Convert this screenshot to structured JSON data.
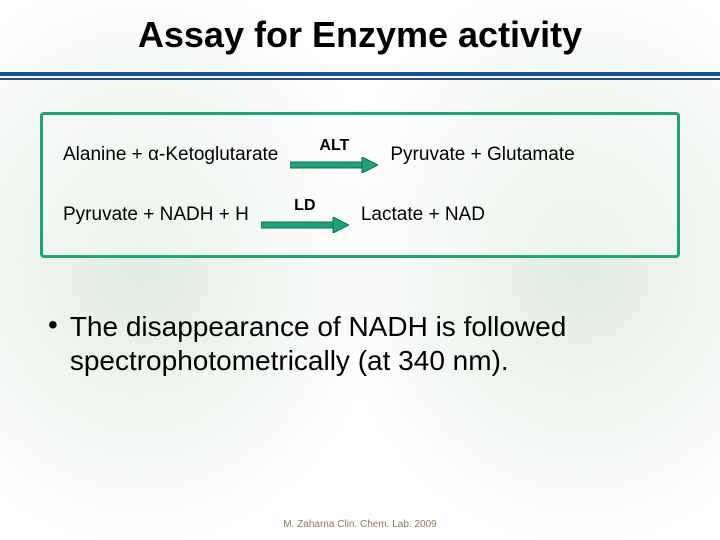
{
  "title": {
    "text": "Assay for Enzyme activity",
    "fontsize": 36,
    "color": "#000000"
  },
  "rule_color": "#1f4f8f",
  "reaction_box": {
    "border_color": "#1fa27d",
    "rows": [
      {
        "lhs": "Alanine  +  α-Ketoglutarate",
        "enzyme": "ALT",
        "rhs": "Pyruvate + Glutamate",
        "arrow_fill": "#1fa27d",
        "arrow_stroke": "#0b6e54",
        "arrow_width": 88,
        "enzyme_fontsize": 16,
        "text_fontsize": 19
      },
      {
        "lhs": "Pyruvate +  NADH  +  H",
        "enzyme": "LD",
        "rhs": "Lactate   +  NAD",
        "arrow_fill": "#1fa27d",
        "arrow_stroke": "#0b6e54",
        "arrow_width": 88,
        "enzyme_fontsize": 16,
        "text_fontsize": 19
      }
    ]
  },
  "bullet": {
    "text": "The disappearance of NADH is followed spectrophotometrically (at 340 nm).",
    "fontsize": 28,
    "dot": "•"
  },
  "footer": {
    "text": "M. Zaharna Clin. Chem. Lab. 2009",
    "fontsize": 10,
    "color": "#8c7a54"
  }
}
